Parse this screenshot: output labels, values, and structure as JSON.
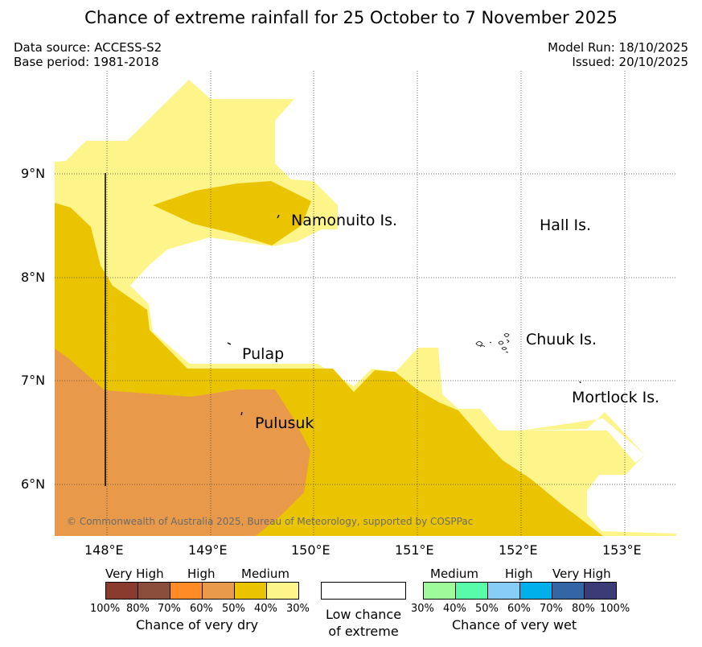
{
  "title": "Chance of extreme rainfall for 25 October to 7 November 2025",
  "meta": {
    "data_source": "Data source: ACCESS-S2",
    "base_period": "Base period: 1981-2018",
    "model_run": "Model Run: 18/10/2025",
    "issued": "Issued: 20/10/2025"
  },
  "axes": {
    "lat_labels": [
      "9°N",
      "8°N",
      "7°N",
      "6°N"
    ],
    "lon_labels": [
      "148°E",
      "149°E",
      "150°E",
      "151°E",
      "152°E",
      "153°E"
    ]
  },
  "places": {
    "namonuito": "Namonuito Is.",
    "hall": "Hall Is.",
    "pulap": "Pulap",
    "chuuk": "Chuuk Is.",
    "mortlock": "Mortlock Is.",
    "pulusuk": "Pulusuk"
  },
  "copyright": "© Commonwealth of Australia 2025, Bureau of Meteorology, supported by COSPPac",
  "legend": {
    "dry": {
      "headings": [
        "Very High",
        "High",
        "Medium"
      ],
      "percentages": [
        "100%",
        "80%",
        "70%",
        "60%",
        "50%",
        "40%",
        "30%"
      ],
      "caption": "Chance of very dry",
      "colors": [
        "#8b3a2e",
        "#8b4e3c",
        "#ff8a26",
        "#e89a4a",
        "#ebc400",
        "#fdf58a"
      ]
    },
    "low": {
      "line1": "Low chance",
      "line2": "of extreme"
    },
    "wet": {
      "headings": [
        "Medium",
        "High",
        "Very High"
      ],
      "percentages": [
        "30%",
        "40%",
        "50%",
        "60%",
        "70%",
        "80%",
        "100%"
      ],
      "caption": "Chance of very wet",
      "colors": [
        "#9ffb9a",
        "#58fba8",
        "#88ccf8",
        "#00b0ea",
        "#3465a4",
        "#3b3b78"
      ]
    }
  },
  "colors": {
    "light_yellow": "#fdf58a",
    "gold": "#ebc400",
    "orange": "#e89a4a"
  }
}
